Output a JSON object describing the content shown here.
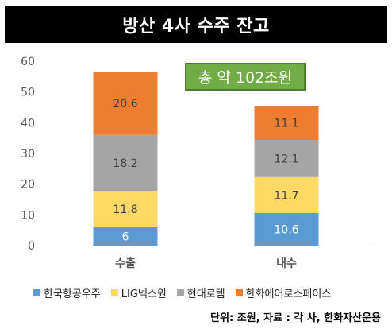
{
  "title": "방산 4사 수주 잔고",
  "callout": "총 약 102조원",
  "source_note": "단위: 조원, 자료 : 각 사, 한화자산운용",
  "colors": {
    "axis_text": "#595959",
    "label_dark": "#404040",
    "label_light": "#ffffff",
    "gridline": "#d9d9d9"
  },
  "chart_data": {
    "type": "bar",
    "stacked": true,
    "categories": [
      "수출",
      "내수"
    ],
    "series": [
      {
        "name": "한국항공우주",
        "values": [
          6,
          10.6
        ],
        "color": "#5b9bd5",
        "label_color": "#ffffff"
      },
      {
        "name": "LIG넥스원",
        "values": [
          11.8,
          11.7
        ],
        "color": "#ffd966",
        "label_color": "#404040"
      },
      {
        "name": "현대로템",
        "values": [
          18.2,
          12.1
        ],
        "color": "#a5a5a5",
        "label_color": "#404040"
      },
      {
        "name": "한화에어로스페이스",
        "values": [
          20.6,
          11.1
        ],
        "color": "#ed7d31",
        "label_color": "#404040"
      }
    ],
    "data_labels": [
      [
        "6",
        "10.6"
      ],
      [
        "11.8",
        "11.7"
      ],
      [
        "18.2",
        "12.1"
      ],
      [
        "20.6",
        "11.1"
      ]
    ],
    "y_ticks": [
      "0",
      "10",
      "20",
      "30",
      "40",
      "50",
      "60"
    ],
    "ylim": [
      0,
      60
    ],
    "grid": false,
    "legend_position": "bottom",
    "title": "방산 4사 수주 잔고",
    "xlabel": "",
    "ylabel": ""
  }
}
